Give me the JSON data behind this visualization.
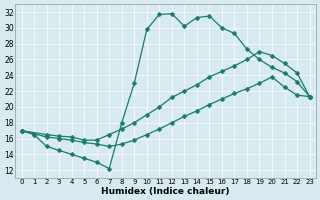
{
  "xlabel": "Humidex (Indice chaleur)",
  "bg_color": "#d6eaf0",
  "line_color": "#1a7a6e",
  "xlim": [
    -0.5,
    23.5
  ],
  "ylim": [
    11,
    33
  ],
  "yticks": [
    12,
    14,
    16,
    18,
    20,
    22,
    24,
    26,
    28,
    30,
    32
  ],
  "xticks": [
    0,
    1,
    2,
    3,
    4,
    5,
    6,
    7,
    8,
    9,
    10,
    11,
    12,
    13,
    14,
    15,
    16,
    17,
    18,
    19,
    20,
    21,
    22,
    23
  ],
  "curve1_x": [
    0,
    1,
    2,
    3,
    4,
    5,
    6,
    7,
    8,
    9,
    10,
    11,
    12,
    13,
    14,
    15,
    16,
    17,
    18,
    19,
    20,
    21,
    22,
    23
  ],
  "curve1_y": [
    17.0,
    16.5,
    15.0,
    14.5,
    14.0,
    13.5,
    13.0,
    12.2,
    18.0,
    23.0,
    29.8,
    31.7,
    31.8,
    30.2,
    31.3,
    31.5,
    30.0,
    29.3,
    27.3,
    26.0,
    25.0,
    24.3,
    23.2,
    21.3
  ],
  "curve2_x": [
    0,
    2,
    3,
    4,
    5,
    6,
    7,
    8,
    9,
    10,
    11,
    12,
    13,
    14,
    15,
    16,
    17,
    18,
    19,
    20,
    21,
    22,
    23
  ],
  "curve2_y": [
    17.0,
    16.5,
    16.3,
    16.2,
    15.8,
    15.8,
    16.5,
    17.2,
    18.0,
    19.0,
    20.0,
    21.2,
    22.0,
    22.8,
    23.8,
    24.5,
    25.2,
    26.0,
    27.0,
    26.5,
    25.5,
    24.3,
    21.3
  ],
  "curve3_x": [
    0,
    2,
    3,
    4,
    5,
    6,
    7,
    8,
    9,
    10,
    11,
    12,
    13,
    14,
    15,
    16,
    17,
    18,
    19,
    20,
    21,
    22,
    23
  ],
  "curve3_y": [
    17.0,
    16.2,
    16.0,
    15.8,
    15.5,
    15.3,
    15.0,
    15.3,
    15.8,
    16.5,
    17.2,
    18.0,
    18.8,
    19.5,
    20.3,
    21.0,
    21.7,
    22.3,
    23.0,
    23.8,
    22.5,
    21.5,
    21.3
  ]
}
